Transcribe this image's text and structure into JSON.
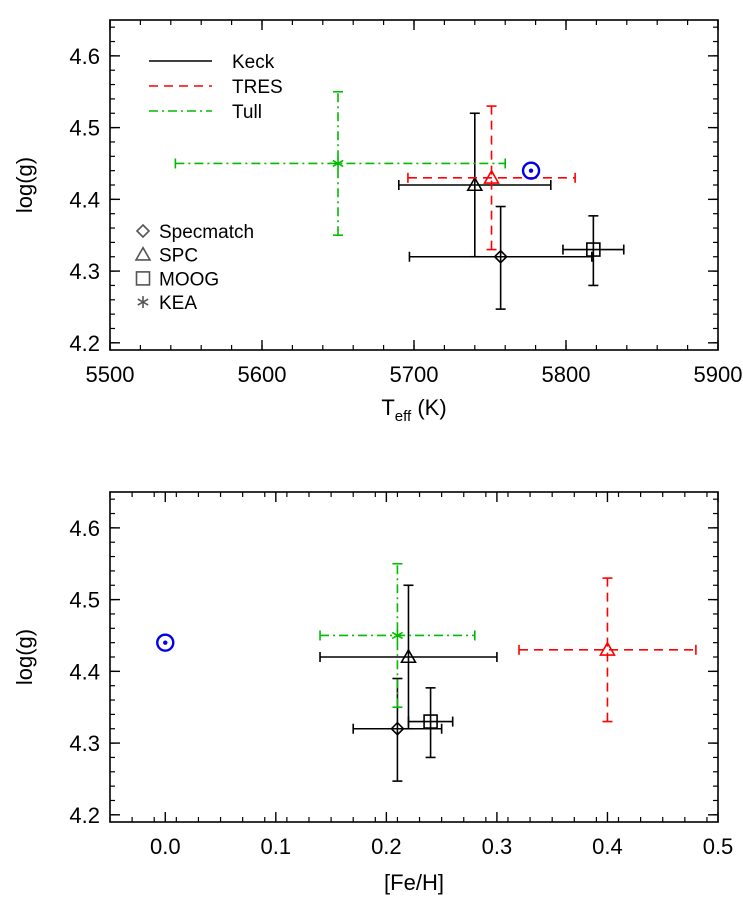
{
  "chart_data": [
    {
      "type": "scatter",
      "xlabel_main": "T",
      "xlabel_sub": "eff",
      "xlabel_unit": " (K)",
      "ylabel": "log(g)",
      "xlim": [
        5500,
        5900
      ],
      "ylim": [
        4.19,
        4.65
      ],
      "xticks": [
        "5500",
        "5600",
        "5700",
        "5800",
        "5900"
      ],
      "yticks": [
        "4.2",
        "4.3",
        "4.4",
        "4.5",
        "4.6"
      ],
      "sun": {
        "x": 5777,
        "y": 4.44
      },
      "points": [
        {
          "instrument": "Keck",
          "method": "Specmatch",
          "x": 5757,
          "y": 4.32,
          "xerr": [
            60,
            60
          ],
          "yerr": [
            0.073,
            0.07
          ]
        },
        {
          "instrument": "Keck",
          "method": "SPC",
          "x": 5740,
          "y": 4.42,
          "xerr": [
            50,
            50
          ],
          "yerr": [
            0.1,
            0.1
          ]
        },
        {
          "instrument": "Keck",
          "method": "MOOG",
          "x": 5818,
          "y": 4.33,
          "xerr": [
            20,
            20
          ],
          "yerr": [
            0.05,
            0.047
          ]
        },
        {
          "instrument": "TRES",
          "method": "SPC",
          "x": 5751,
          "y": 4.43,
          "xerr": [
            55,
            55
          ],
          "yerr": [
            0.1,
            0.1
          ]
        },
        {
          "instrument": "Tull",
          "method": "KEA",
          "x": 5650,
          "y": 4.45,
          "xerr": [
            107,
            110
          ],
          "yerr": [
            0.1,
            0.1
          ]
        }
      ],
      "legend_instruments": [
        {
          "name": "Keck",
          "color": "#000000",
          "dash": "solid"
        },
        {
          "name": "TRES",
          "color": "#ff0000",
          "dash": "dashed"
        },
        {
          "name": "Tull",
          "color": "#00bb00",
          "dash": "dashdot"
        }
      ],
      "legend_methods": [
        {
          "name": "Specmatch",
          "symbol": "diamond"
        },
        {
          "name": "SPC",
          "symbol": "triangle"
        },
        {
          "name": "MOOG",
          "symbol": "square"
        },
        {
          "name": "KEA",
          "symbol": "asterisk"
        }
      ]
    },
    {
      "type": "scatter",
      "xlabel": "[Fe/H]",
      "ylabel": "log(g)",
      "xlim": [
        -0.05,
        0.5
      ],
      "ylim": [
        4.19,
        4.65
      ],
      "xticks": [
        "0.0",
        "0.1",
        "0.2",
        "0.3",
        "0.4",
        "0.5"
      ],
      "yticks": [
        "4.2",
        "4.3",
        "4.4",
        "4.5",
        "4.6"
      ],
      "sun": {
        "x": 0.0,
        "y": 4.44
      },
      "points": [
        {
          "instrument": "Keck",
          "method": "Specmatch",
          "x": 0.21,
          "y": 4.32,
          "xerr": [
            0.04,
            0.04
          ],
          "yerr": [
            0.073,
            0.07
          ]
        },
        {
          "instrument": "Keck",
          "method": "SPC",
          "x": 0.22,
          "y": 4.42,
          "xerr": [
            0.08,
            0.08
          ],
          "yerr": [
            0.1,
            0.1
          ]
        },
        {
          "instrument": "Keck",
          "method": "MOOG",
          "x": 0.24,
          "y": 4.33,
          "xerr": [
            0.02,
            0.02
          ],
          "yerr": [
            0.05,
            0.047
          ]
        },
        {
          "instrument": "TRES",
          "method": "SPC",
          "x": 0.4,
          "y": 4.43,
          "xerr": [
            0.08,
            0.08
          ],
          "yerr": [
            0.1,
            0.1
          ]
        },
        {
          "instrument": "Tull",
          "method": "KEA",
          "x": 0.21,
          "y": 4.45,
          "xerr": [
            0.07,
            0.07
          ],
          "yerr": [
            0.1,
            0.1
          ]
        }
      ]
    }
  ],
  "colors": {
    "Keck": "#000000",
    "TRES": "#ff0000",
    "Tull": "#00bb00",
    "sun": "#0000ee"
  }
}
